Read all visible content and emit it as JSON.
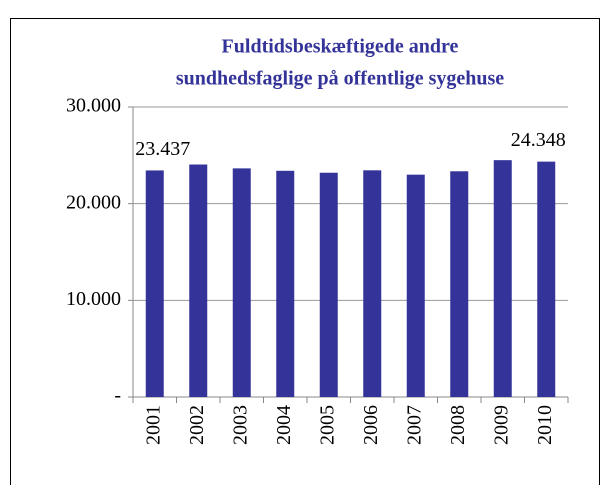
{
  "chart_data": {
    "type": "bar",
    "title": "Fuldtidsbeskæftigede andre sundhedsfaglige på offentlige sygehuse",
    "categories": [
      "2001",
      "2002",
      "2003",
      "2004",
      "2005",
      "2006",
      "2007",
      "2008",
      "2009",
      "2010"
    ],
    "values": [
      23437,
      24050,
      23650,
      23400,
      23200,
      23450,
      23000,
      23350,
      24500,
      24348
    ],
    "value_labels": [
      "23.437",
      null,
      null,
      null,
      null,
      null,
      null,
      null,
      null,
      "24.348"
    ],
    "color": "#333399",
    "ylim": [
      0,
      30000
    ],
    "yticks": [
      {
        "value": 0,
        "label": "-"
      },
      {
        "value": 10000,
        "label": "10.000"
      },
      {
        "value": 20000,
        "label": "20.000"
      },
      {
        "value": 30000,
        "label": "30.000"
      }
    ],
    "grid": true
  }
}
